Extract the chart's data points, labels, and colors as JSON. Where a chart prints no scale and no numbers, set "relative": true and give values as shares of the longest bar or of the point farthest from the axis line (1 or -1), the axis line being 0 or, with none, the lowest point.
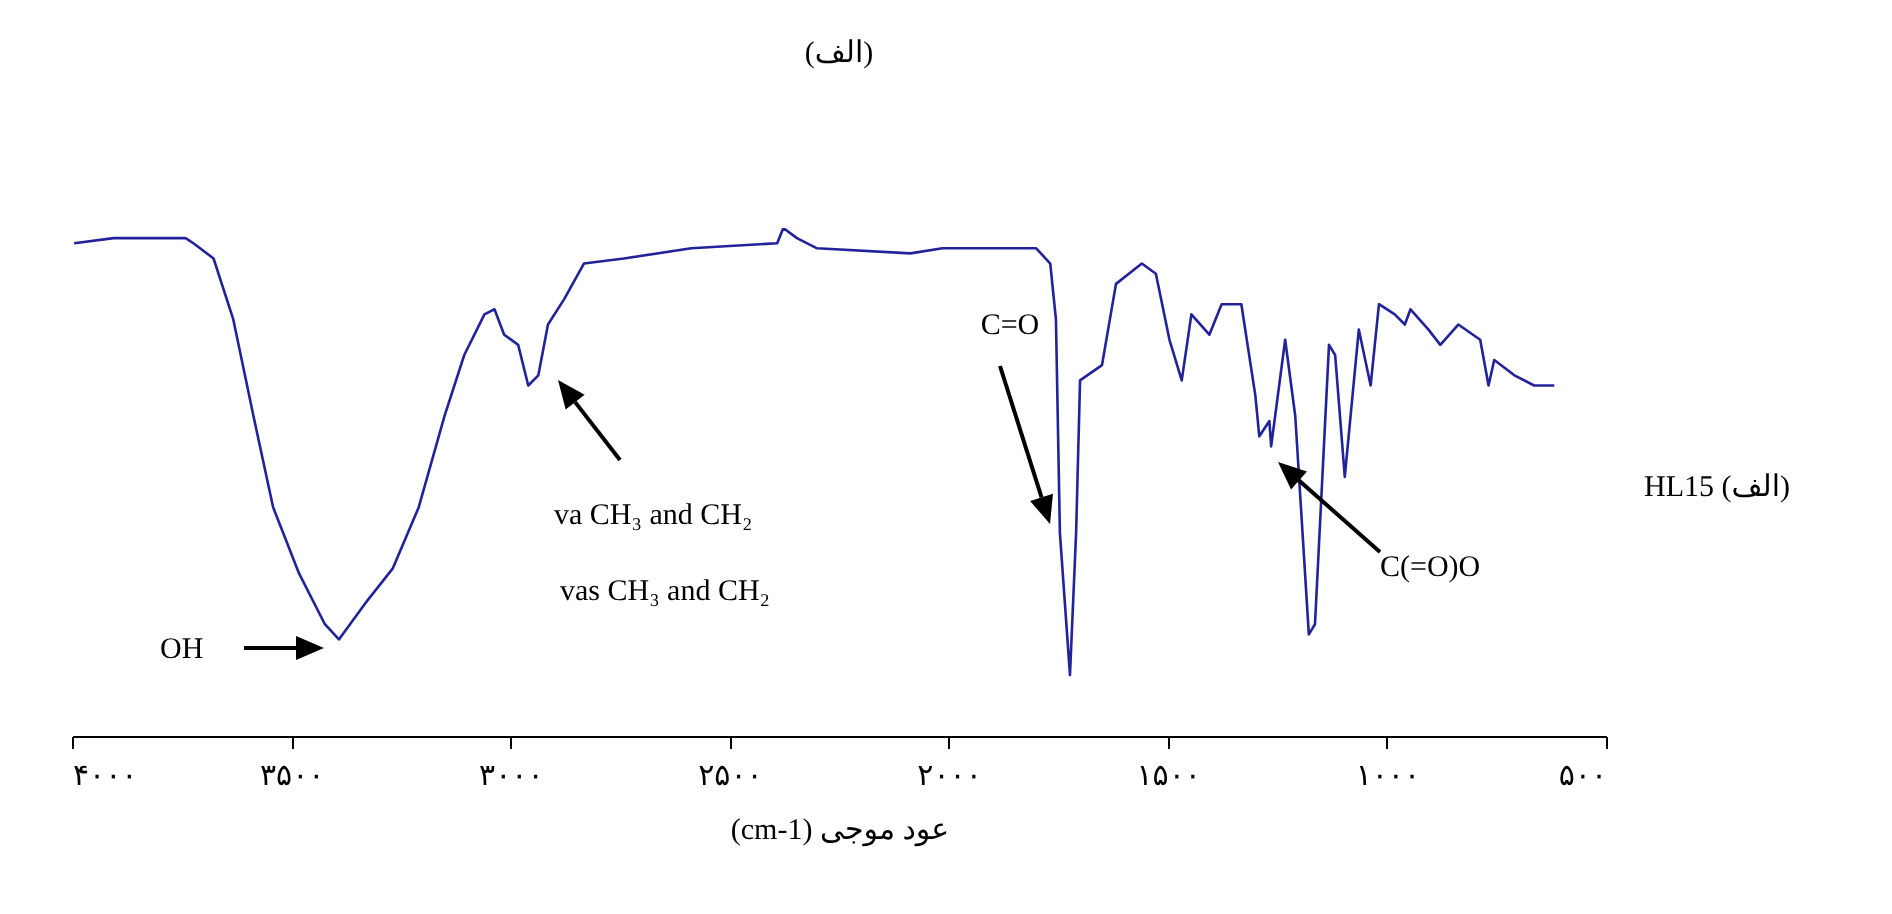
{
  "chart_data": {
    "type": "line",
    "title": "(الف)",
    "xlabel": "(cm-1) عود موجی",
    "relative": true,
    "xlim": [
      4000,
      500
    ],
    "xticks": [
      {
        "value": 4000,
        "label": "۴۰۰۰"
      },
      {
        "value": 3500,
        "label": "۳۵۰۰"
      },
      {
        "value": 3000,
        "label": "۳۰۰۰"
      },
      {
        "value": 2500,
        "label": "۲۵۰۰"
      },
      {
        "value": 2000,
        "label": "۲۰۰۰"
      },
      {
        "value": 1500,
        "label": "۱۵۰۰"
      },
      {
        "value": 1000,
        "label": "۱۰۰۰"
      },
      {
        "value": 500,
        "label": "۵۰۰"
      }
    ],
    "series": [
      {
        "color": "#22229a",
        "x": [
          3995,
          3905,
          3741,
          3723,
          3677,
          3632,
          3586,
          3541,
          3482,
          3423,
          3391,
          3332,
          3268,
          3209,
          3150,
          3105,
          3059,
          3036,
          3014,
          2982,
          2959,
          2936,
          2914,
          2877,
          2832,
          2741,
          2587,
          2391,
          2377,
          2346,
          2300,
          2087,
          2014,
          1800,
          1768,
          1755,
          1746,
          1723,
          1709,
          1700,
          1650,
          1618,
          1559,
          1527,
          1496,
          1468,
          1446,
          1405,
          1377,
          1332,
          1300,
          1291,
          1268,
          1264,
          1232,
          1209,
          1178,
          1164,
          1132,
          1118,
          1096,
          1064,
          1037,
          1018,
          982,
          959,
          946,
          905,
          878,
          837,
          787,
          768,
          755,
          709,
          664,
          618
        ],
        "values": [
          0.97,
          0.98,
          0.98,
          0.97,
          0.94,
          0.82,
          0.63,
          0.45,
          0.32,
          0.22,
          0.19,
          0.26,
          0.33,
          0.45,
          0.63,
          0.75,
          0.83,
          0.84,
          0.79,
          0.77,
          0.69,
          0.71,
          0.81,
          0.86,
          0.93,
          0.94,
          0.96,
          0.97,
          1.0,
          0.98,
          0.96,
          0.95,
          0.96,
          0.96,
          0.93,
          0.82,
          0.4,
          0.12,
          0.4,
          0.7,
          0.73,
          0.89,
          0.93,
          0.91,
          0.78,
          0.7,
          0.83,
          0.79,
          0.85,
          0.85,
          0.67,
          0.59,
          0.62,
          0.57,
          0.78,
          0.63,
          0.2,
          0.22,
          0.77,
          0.75,
          0.51,
          0.8,
          0.69,
          0.85,
          0.83,
          0.81,
          0.84,
          0.8,
          0.77,
          0.81,
          0.78,
          0.69,
          0.74,
          0.71,
          0.69,
          0.69
        ]
      }
    ],
    "annotations": [
      "OH",
      "va  CH₃ and CH₂",
      "vas  CH₃ and CH₂",
      "C=O",
      "C(=O)O",
      "HL15 (الف)"
    ]
  }
}
